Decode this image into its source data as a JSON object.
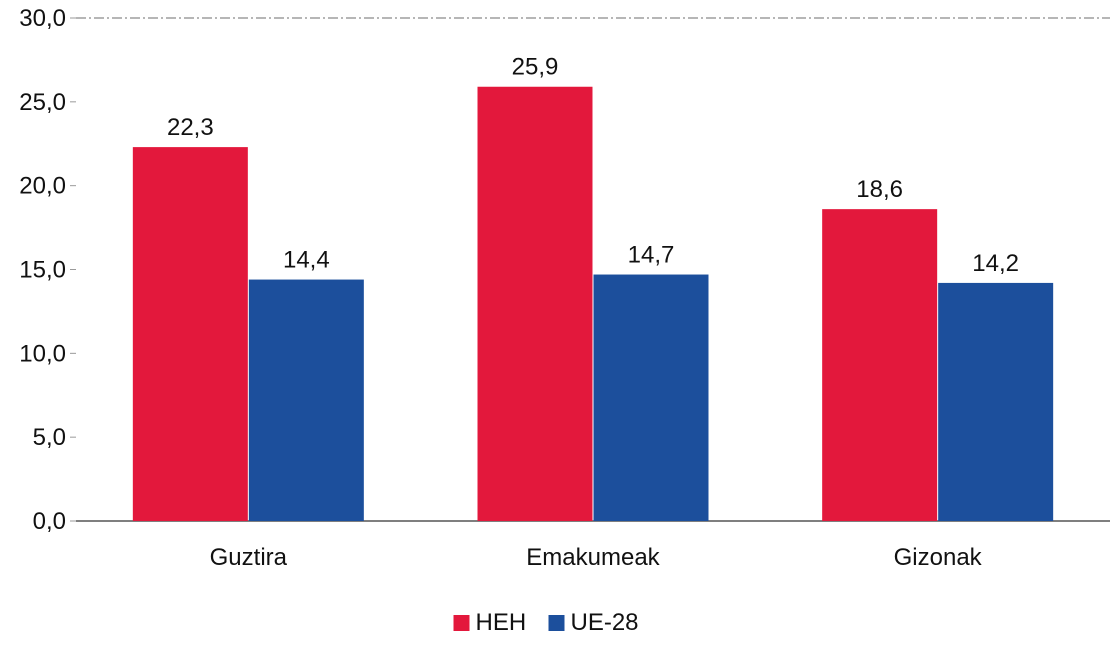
{
  "chart_data": {
    "type": "bar",
    "title": "",
    "xlabel": "",
    "ylabel": "",
    "categories": [
      "Guztira",
      "Emakumeak",
      "Gizonak"
    ],
    "series": [
      {
        "name": "HEH",
        "color": "#e3183c",
        "values": [
          22.3,
          25.9,
          18.6
        ],
        "labels": [
          "22,3",
          "25,9",
          "18,6"
        ]
      },
      {
        "name": "UE-28",
        "color": "#1c4f9c",
        "values": [
          14.4,
          14.7,
          14.2
        ],
        "labels": [
          "14,4",
          "14,7",
          "14,2"
        ]
      }
    ],
    "ylim": [
      0,
      30
    ],
    "yticks": [
      0,
      5,
      10,
      15,
      20,
      25,
      30
    ],
    "ytick_labels": [
      "0,0",
      "5,0",
      "10,0",
      "15,0",
      "20,0",
      "25,0",
      "30,0"
    ],
    "grid": false,
    "legend_position": "bottom-center"
  }
}
